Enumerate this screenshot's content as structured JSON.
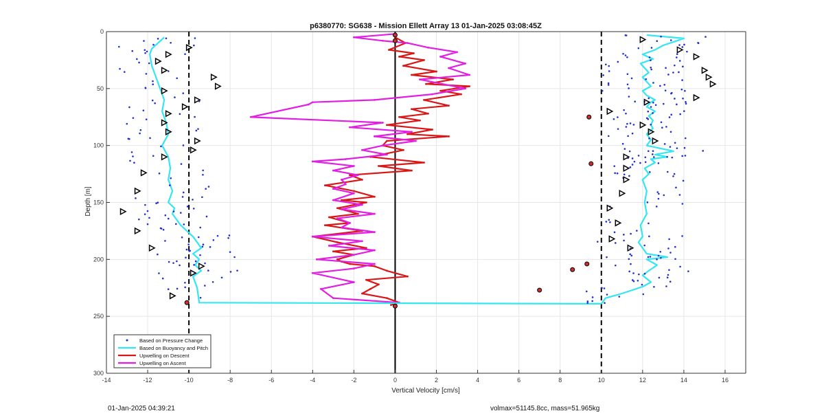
{
  "chart_data": {
    "type": "line",
    "title": "p6380770: SG638 - Mission Ellett Array 13 01-Jan-2025 03:08:45Z",
    "xlabel": "Vertical Velocity [cm/s]",
    "ylabel": "Depth [m]",
    "xlim": [
      -14,
      17
    ],
    "ylim": [
      0,
      300
    ],
    "y_reversed": true,
    "xticks": [
      -14,
      -12,
      -10,
      -8,
      -6,
      -4,
      -2,
      0,
      2,
      4,
      6,
      8,
      10,
      12,
      14,
      16
    ],
    "yticks": [
      0,
      50,
      100,
      150,
      200,
      250,
      300
    ],
    "grid": true,
    "legend_position": "bottom-left",
    "legend": [
      {
        "label": "Based on Pressure Change",
        "color": "#1f2fd0",
        "style": "dots"
      },
      {
        "label": "Based on Buoyancy and Pitch",
        "color": "#33e6f0",
        "style": "line"
      },
      {
        "label": "Upwelling on Descent",
        "color": "#d81818",
        "style": "line"
      },
      {
        "label": "Upwelling on Ascent",
        "color": "#e21ee2",
        "style": "line"
      }
    ],
    "reference_lines": {
      "vertical_solid": [
        0
      ],
      "vertical_dashed": [
        -10,
        10
      ]
    },
    "series": [
      {
        "name": "Upwelling on Descent",
        "color": "#d81818",
        "x": [
          0.0,
          0.5,
          -0.3,
          0.9,
          0.2,
          1.4,
          0.4,
          2.0,
          0.8,
          2.8,
          1.5,
          3.6,
          2.2,
          3.2,
          1.4,
          2.6,
          0.8,
          1.6,
          0.2,
          1.2,
          -0.4,
          1.8,
          0.6,
          2.6,
          -0.4,
          -0.6,
          0.4,
          -1.2,
          1.4,
          -0.8,
          0.8,
          -2.2,
          -1.6,
          -3.4,
          -2.0,
          -1.0,
          -2.6,
          -1.4,
          -2.8,
          -1.8,
          -3.2,
          -2.2,
          -3.4,
          -1.6,
          -4.0,
          -2.8,
          -1.4,
          -3.0,
          -2.0,
          -2.8,
          -2.6,
          -2.2,
          -1.0,
          -0.4,
          0.6,
          -1.4,
          -0.8,
          -1.2,
          -1.6,
          -0.4,
          0.2,
          -0.2
        ],
        "y": [
          5,
          10,
          16,
          19,
          22,
          25,
          30,
          35,
          38,
          42,
          46,
          48,
          52,
          55,
          60,
          65,
          68,
          72,
          75,
          78,
          82,
          86,
          90,
          92,
          96,
          100,
          104,
          110,
          115,
          118,
          122,
          126,
          130,
          135,
          140,
          145,
          148,
          150,
          155,
          160,
          163,
          168,
          170,
          175,
          180,
          185,
          190,
          193,
          196,
          200,
          202,
          204,
          206,
          210,
          215,
          218,
          222,
          226,
          230,
          234,
          238,
          240
        ]
      },
      {
        "name": "Upwelling on Ascent",
        "color": "#e21ee2",
        "x": [
          0.0,
          -2.0,
          -0.6,
          0.6,
          1.6,
          3.0,
          2.2,
          3.4,
          2.6,
          3.6,
          1.2,
          3.4,
          1.8,
          -1.0,
          -4.0,
          -4.2,
          -7.0,
          -0.6,
          -2.2,
          0.8,
          -1.0,
          1.0,
          -0.6,
          -1.6,
          -0.4,
          -2.4,
          -4.0,
          -2.0,
          -3.0,
          -1.8,
          -2.6,
          -2.4,
          -3.0,
          -2.0,
          -3.0,
          -1.6,
          -2.6,
          -1.0,
          -2.8,
          -2.2,
          -2.6,
          -1.0,
          -4.0,
          -1.6,
          -3.2,
          -1.0,
          -2.0,
          -3.8,
          -1.0,
          -2.0,
          -4.0,
          -2.0,
          -3.6,
          -3.0,
          0.2
        ],
        "y": [
          2,
          5,
          8,
          10,
          14,
          18,
          22,
          28,
          32,
          38,
          42,
          50,
          55,
          60,
          62,
          64,
          75,
          80,
          84,
          88,
          92,
          96,
          100,
          104,
          108,
          112,
          114,
          118,
          122,
          126,
          130,
          134,
          138,
          142,
          148,
          152,
          156,
          160,
          164,
          168,
          172,
          176,
          180,
          184,
          188,
          192,
          196,
          200,
          204,
          208,
          212,
          220,
          226,
          234,
          238
        ]
      },
      {
        "name": "Based on Buoyancy and Pitch (descent)",
        "color": "#33e6f0",
        "x": [
          -11.2,
          -11.5,
          -11.8,
          -11.9,
          -11.8,
          -11.6,
          -11.4,
          -11.2,
          -11.3,
          -11.1,
          -11.0,
          -11.3,
          -11.0,
          -10.9,
          -11.0,
          -10.8,
          -11.0,
          -10.7,
          -10.8,
          -10.6,
          -10.4,
          -10.1,
          -9.8,
          -9.6,
          -9.4,
          -9.8,
          -9.5,
          -9.7,
          -9.4,
          -9.8,
          -9.6,
          -9.5,
          0.0,
          10.0
        ],
        "y": [
          5,
          10,
          15,
          20,
          30,
          40,
          50,
          60,
          70,
          80,
          90,
          100,
          110,
          120,
          130,
          140,
          150,
          155,
          160,
          165,
          170,
          175,
          180,
          185,
          190,
          195,
          200,
          205,
          210,
          215,
          225,
          238,
          238.5,
          239
        ]
      },
      {
        "name": "Based on Buoyancy and Pitch (ascent)",
        "color": "#33e6f0",
        "x": [
          10.0,
          10.2,
          11.0,
          12.0,
          12.4,
          12.0,
          12.3,
          12.7,
          12.2,
          13.2,
          12.2,
          12.0,
          11.8,
          12.0,
          11.9,
          12.2,
          12.1,
          12.2,
          12.0,
          12.3,
          12.1,
          12.6,
          12.4,
          13.2,
          12.6,
          13.5,
          12.2,
          12.4,
          12.2,
          12.5,
          12.4,
          12.5,
          12.3,
          12.6,
          12.2,
          12.4,
          12.6,
          12.2,
          12.0,
          12.4,
          12.2,
          12.0,
          12.3,
          12.1,
          11.9,
          12.5,
          12.0,
          12.6,
          13.0,
          14.0,
          12.2
        ],
        "y": [
          239,
          234,
          230,
          224,
          220,
          214,
          210,
          205,
          200,
          198,
          195,
          190,
          185,
          180,
          170,
          160,
          150,
          140,
          130,
          125,
          120,
          115,
          112,
          110,
          108,
          105,
          100,
          95,
          90,
          85,
          82,
          78,
          74,
          70,
          66,
          62,
          60,
          56,
          52,
          48,
          44,
          40,
          36,
          32,
          28,
          24,
          20,
          16,
          12,
          6,
          3
        ]
      }
    ]
  },
  "footer": {
    "timestamp": "01-Jan-2025 04:39:21",
    "params": "volmax=51145.8cc, mass=51.965kg"
  }
}
